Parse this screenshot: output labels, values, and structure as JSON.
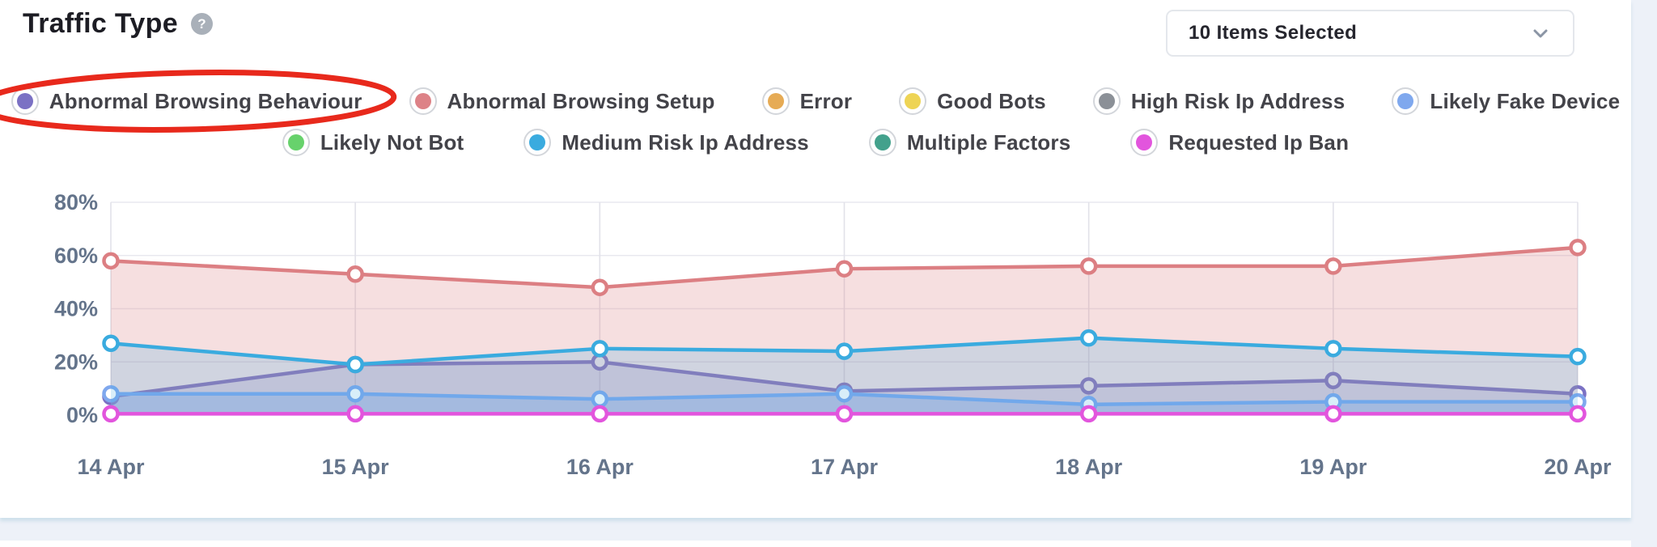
{
  "header": {
    "title": "Traffic Type",
    "help_glyph": "?",
    "dropdown_value": "10 Items Selected"
  },
  "legend": {
    "rows": [
      [
        {
          "label": "Abnormal Browsing Behaviour",
          "color": "#7b71c4"
        },
        {
          "label": "Abnormal Browsing Setup",
          "color": "#dd8287"
        },
        {
          "label": "Error",
          "color": "#e6ab55"
        },
        {
          "label": "Good Bots",
          "color": "#eed455"
        },
        {
          "label": "High Risk Ip Address",
          "color": "#8b9097"
        },
        {
          "label": "Likely Fake Device",
          "color": "#7fa8ee"
        }
      ],
      [
        {
          "label": "Likely Not Bot",
          "color": "#67d26c"
        },
        {
          "label": "Medium Risk Ip Address",
          "color": "#3aabdf"
        },
        {
          "label": "Multiple Factors",
          "color": "#43a18c"
        },
        {
          "label": "Requested Ip Ban",
          "color": "#e255dd"
        }
      ]
    ]
  },
  "annotation": {
    "type": "ellipse",
    "highlighted_item": "Abnormal Browsing Behaviour",
    "color": "#e8291c"
  },
  "chart_data": {
    "type": "area",
    "title": "Traffic Type",
    "x": [
      "14 Apr",
      "15 Apr",
      "16 Apr",
      "17 Apr",
      "18 Apr",
      "19 Apr",
      "20 Apr"
    ],
    "ylim": [
      0,
      80
    ],
    "y_ticks": [
      {
        "label": "80%",
        "value": 80
      },
      {
        "label": "60%",
        "value": 60
      },
      {
        "label": "40%",
        "value": 40
      },
      {
        "label": "20%",
        "value": 20
      },
      {
        "label": "0%",
        "value": 0
      }
    ],
    "grid": true,
    "legend_position": "top",
    "series": [
      {
        "name": "Abnormal Browsing Behaviour",
        "color": "#7b71c4",
        "values": [
          7,
          19,
          20,
          9,
          11,
          13,
          8
        ]
      },
      {
        "name": "Abnormal Browsing Setup",
        "color": "#dc7f83",
        "values": [
          58,
          53,
          48,
          55,
          56,
          56,
          63
        ]
      },
      {
        "name": "Error",
        "color": "#e6ab55",
        "values": [
          0,
          0,
          0,
          0,
          0,
          0,
          0
        ],
        "hidden": true
      },
      {
        "name": "Good Bots",
        "color": "#eed455",
        "values": [
          0,
          0,
          0,
          0,
          0,
          0,
          0
        ],
        "hidden": true
      },
      {
        "name": "High Risk Ip Address",
        "color": "#8b9097",
        "values": [
          0,
          0,
          0,
          0,
          0,
          0,
          0
        ],
        "hidden": true
      },
      {
        "name": "Likely Fake Device",
        "color": "#7fa8ee",
        "values": [
          8,
          8,
          6,
          8,
          4,
          5,
          5
        ]
      },
      {
        "name": "Likely Not Bot",
        "color": "#67d26c",
        "values": [
          0,
          0,
          0,
          0,
          0,
          0,
          0
        ],
        "hidden": true
      },
      {
        "name": "Medium Risk Ip Address",
        "color": "#3aabdf",
        "values": [
          27,
          19,
          25,
          24,
          29,
          25,
          22
        ]
      },
      {
        "name": "Multiple Factors",
        "color": "#43a18c",
        "values": [
          0,
          0,
          0,
          0,
          0,
          0,
          0
        ],
        "hidden": true
      },
      {
        "name": "Requested Ip Ban",
        "color": "#e255dd",
        "values": [
          0.5,
          0.5,
          0.5,
          0.5,
          0.5,
          0.5,
          0.5
        ]
      }
    ]
  }
}
